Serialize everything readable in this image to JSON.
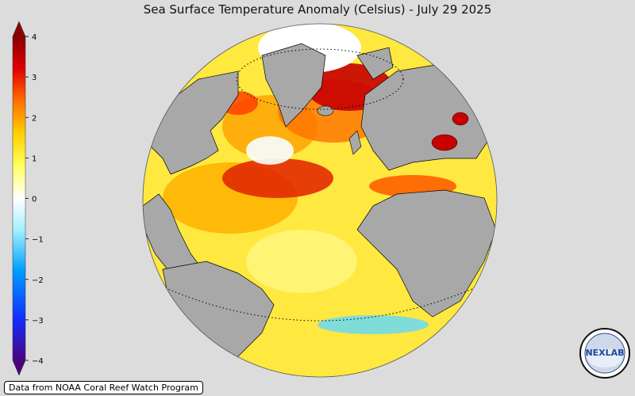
{
  "title": "Sea Surface Temperature Anomaly (Celsius) - July 29 2025",
  "colorbar": {
    "min": -4,
    "max": 4,
    "ticks": [
      "4",
      "3",
      "2",
      "1",
      "0",
      "−1",
      "−2",
      "−3",
      "−4"
    ],
    "colors": [
      "#4b0082",
      "#0050ff",
      "#00c8ff",
      "#ffffff",
      "#ffff00",
      "#ff8c00",
      "#e00000",
      "#8b0000"
    ]
  },
  "credit": "Data from NOAA Coral Reef Watch Program",
  "logo": {
    "text": "NEXLAB"
  },
  "colors": {
    "land": "#a8a8a8",
    "background": "#dcdcdc",
    "ocean_warm": "#ffe840",
    "anomaly_hot": "#c80000",
    "anomaly_cold": "#40c8ff"
  }
}
